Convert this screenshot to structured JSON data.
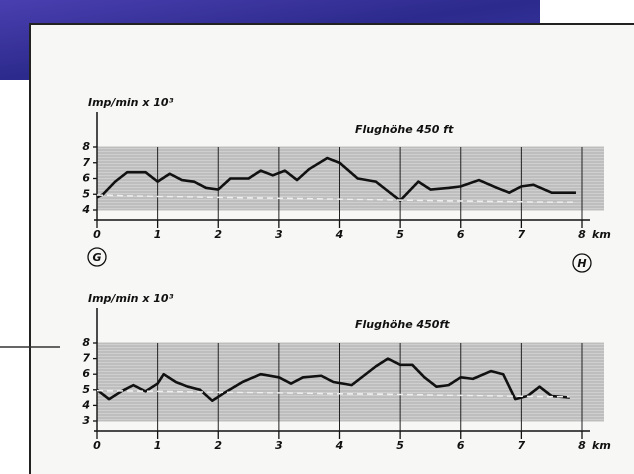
{
  "chart_data": [
    {
      "type": "line",
      "title": "Flughöhe 450 ft",
      "y_label": "Imp/min x 10³",
      "x_unit": "km",
      "annotations": [
        "G",
        "H"
      ],
      "x": [
        0,
        0.1,
        0.3,
        0.5,
        0.8,
        1.0,
        1.2,
        1.4,
        1.6,
        1.8,
        2.0,
        2.2,
        2.5,
        2.7,
        2.9,
        3.1,
        3.3,
        3.5,
        3.8,
        4.0,
        4.3,
        4.6,
        4.8,
        5.0,
        5.3,
        5.5,
        5.8,
        6.0,
        6.3,
        6.6,
        6.8,
        7.0,
        7.2,
        7.5,
        7.9
      ],
      "series": [
        {
          "color": "#111111",
          "values": [
            4.8,
            5.0,
            5.8,
            6.4,
            6.4,
            5.8,
            6.3,
            5.9,
            5.8,
            5.4,
            5.3,
            6.0,
            6.0,
            6.5,
            6.2,
            6.5,
            5.9,
            6.6,
            7.3,
            7.0,
            6.0,
            5.8,
            5.2,
            4.6,
            5.8,
            5.3,
            5.4,
            5.5,
            5.9,
            5.4,
            5.1,
            5.5,
            5.6,
            5.1,
            5.1
          ]
        },
        {
          "color": "#eeeeee",
          "dashed": true,
          "values": [
            4.95,
            4.94,
            4.92,
            4.9,
            4.88,
            4.86,
            4.85,
            4.84,
            4.83,
            4.81,
            4.8,
            4.79,
            4.77,
            4.76,
            4.75,
            4.74,
            4.73,
            4.72,
            4.7,
            4.69,
            4.67,
            4.65,
            4.64,
            4.63,
            4.61,
            4.6,
            4.58,
            4.57,
            4.55,
            4.54,
            4.53,
            4.52,
            4.51,
            4.5,
            4.5
          ]
        }
      ],
      "xlim": [
        0,
        8
      ],
      "xticks": [
        0,
        1,
        2,
        3,
        4,
        5,
        6,
        7,
        8
      ],
      "ylim": [
        4,
        8
      ],
      "yticks": [
        4,
        5,
        6,
        7,
        8
      ],
      "grid": true
    },
    {
      "type": "line",
      "title": "Flughöhe 450ft",
      "y_label": "Imp/min x 10³",
      "x_unit": "km",
      "x": [
        0,
        0.2,
        0.4,
        0.6,
        0.8,
        1.0,
        1.1,
        1.3,
        1.5,
        1.7,
        1.9,
        2.1,
        2.4,
        2.7,
        3.0,
        3.2,
        3.4,
        3.7,
        3.9,
        4.2,
        4.4,
        4.6,
        4.8,
        5.0,
        5.2,
        5.4,
        5.6,
        5.8,
        6.0,
        6.2,
        6.5,
        6.7,
        6.9,
        7.1,
        7.3,
        7.5,
        7.8
      ],
      "series": [
        {
          "color": "#111111",
          "values": [
            5.0,
            4.4,
            4.9,
            5.3,
            4.9,
            5.4,
            6.0,
            5.5,
            5.2,
            5.0,
            4.3,
            4.8,
            5.5,
            6.0,
            5.8,
            5.4,
            5.8,
            5.9,
            5.5,
            5.3,
            5.9,
            6.5,
            7.0,
            6.6,
            6.6,
            5.8,
            5.2,
            5.3,
            5.8,
            5.7,
            6.2,
            6.0,
            4.4,
            4.6,
            5.2,
            4.6,
            4.5
          ]
        },
        {
          "color": "#eeeeee",
          "dashed": true,
          "values": [
            4.95,
            4.94,
            4.93,
            4.92,
            4.91,
            4.9,
            4.89,
            4.88,
            4.87,
            4.86,
            4.85,
            4.84,
            4.83,
            4.81,
            4.8,
            4.79,
            4.78,
            4.76,
            4.75,
            4.74,
            4.73,
            4.72,
            4.71,
            4.7,
            4.69,
            4.68,
            4.66,
            4.65,
            4.64,
            4.63,
            4.61,
            4.6,
            4.59,
            4.58,
            4.57,
            4.56,
            4.55
          ]
        }
      ],
      "xlim": [
        0,
        8
      ],
      "xticks": [
        0,
        1,
        2,
        3,
        4,
        5,
        6,
        7,
        8
      ],
      "ylim": [
        3,
        8
      ],
      "yticks": [
        3,
        4,
        5,
        6,
        7,
        8
      ],
      "grid": true
    }
  ]
}
